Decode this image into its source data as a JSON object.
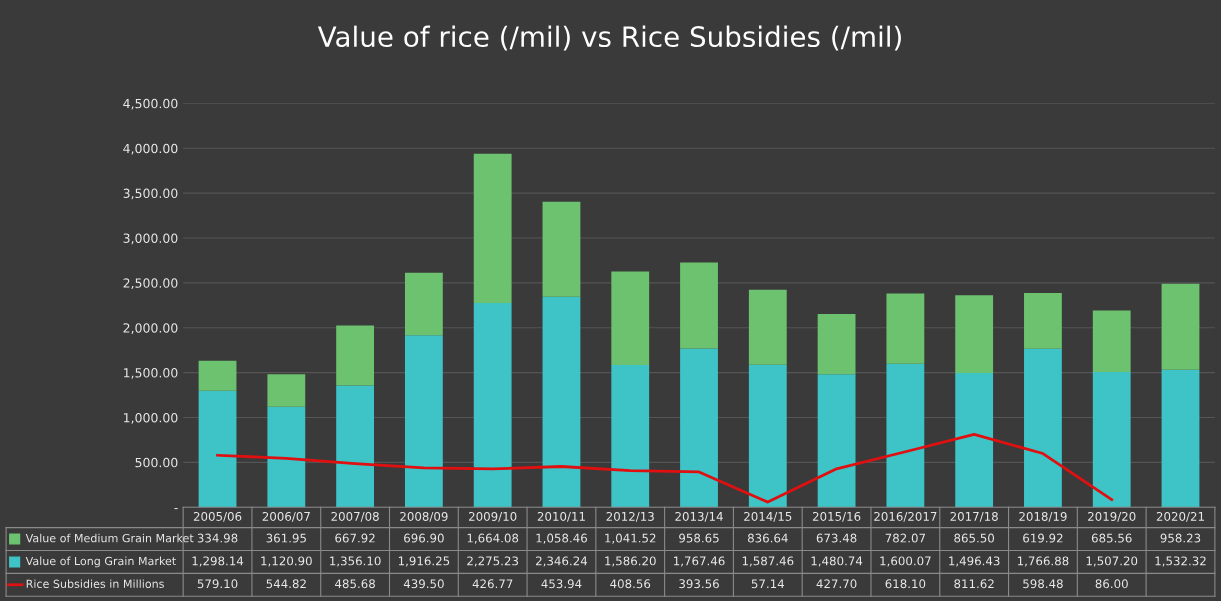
{
  "chart_data": {
    "type": "bar",
    "title": "Value of rice (/mil) vs Rice Subsidies (/mil)",
    "categories": [
      "2005/06",
      "2006/07",
      "2007/08",
      "2008/09",
      "2009/10",
      "2010/11",
      "2012/13",
      "2013/14",
      "2014/15",
      "2015/16",
      "2016/2017",
      "2017/18",
      "2018/19",
      "2019/20",
      "2020/21"
    ],
    "stacked": true,
    "series": [
      {
        "name": "Value of Long Grain Market",
        "color": "#3ec3c6",
        "values": [
          1298.14,
          1120.9,
          1356.1,
          1916.25,
          2275.23,
          2346.24,
          1586.2,
          1767.46,
          1587.46,
          1480.74,
          1600.07,
          1496.43,
          1766.88,
          1507.2,
          1532.32
        ],
        "value_labels": [
          "1,298.14",
          "1,120.90",
          "1,356.10",
          "1,916.25",
          "2,275.23",
          "2,346.24",
          "1,586.20",
          "1,767.46",
          "1,587.46",
          "1,480.74",
          "1,600.07",
          "1,496.43",
          "1,766.88",
          "1,507.20",
          "1,532.32"
        ]
      },
      {
        "name": "Value of Medium Grain Market",
        "color": "#6cc26f",
        "values": [
          334.98,
          361.95,
          667.92,
          696.9,
          1664.08,
          1058.46,
          1041.52,
          958.65,
          836.64,
          673.48,
          782.07,
          865.5,
          619.92,
          685.56,
          958.23
        ],
        "value_labels": [
          "334.98",
          "361.95",
          "667.92",
          "696.90",
          "1,664.08",
          "1,058.46",
          "1,041.52",
          "958.65",
          "836.64",
          "673.48",
          "782.07",
          "865.50",
          "619.92",
          "685.56",
          "958.23"
        ]
      },
      {
        "name": "Rice Subsidies in Millions",
        "type": "line",
        "color": "#e01010",
        "values": [
          579.1,
          544.82,
          485.68,
          439.5,
          426.77,
          453.94,
          408.56,
          393.56,
          57.14,
          427.7,
          618.1,
          811.62,
          598.48,
          86.0,
          null
        ],
        "value_labels": [
          "579.10",
          "544.82",
          "485.68",
          "439.50",
          "426.77",
          "453.94",
          "408.56",
          "393.56",
          "57.14",
          "427.70",
          "618.10",
          "811.62",
          "598.48",
          "86.00",
          null
        ]
      }
    ],
    "ylim": [
      0,
      4500
    ],
    "yticks": [
      {
        "value": 0,
        "label": "-"
      },
      {
        "value": 500,
        "label": "500.00"
      },
      {
        "value": 1000,
        "label": "1,000.00"
      },
      {
        "value": 1500,
        "label": "1,500.00"
      },
      {
        "value": 2000,
        "label": "2,000.00"
      },
      {
        "value": 2500,
        "label": "2,500.00"
      },
      {
        "value": 3000,
        "label": "3,000.00"
      },
      {
        "value": 3500,
        "label": "3,500.00"
      },
      {
        "value": 4000,
        "label": "4,000.00"
      },
      {
        "value": 4500,
        "label": "4,500.00"
      }
    ],
    "grid": "y",
    "legend": "bottom",
    "marker": "none",
    "line_style": "solid"
  }
}
